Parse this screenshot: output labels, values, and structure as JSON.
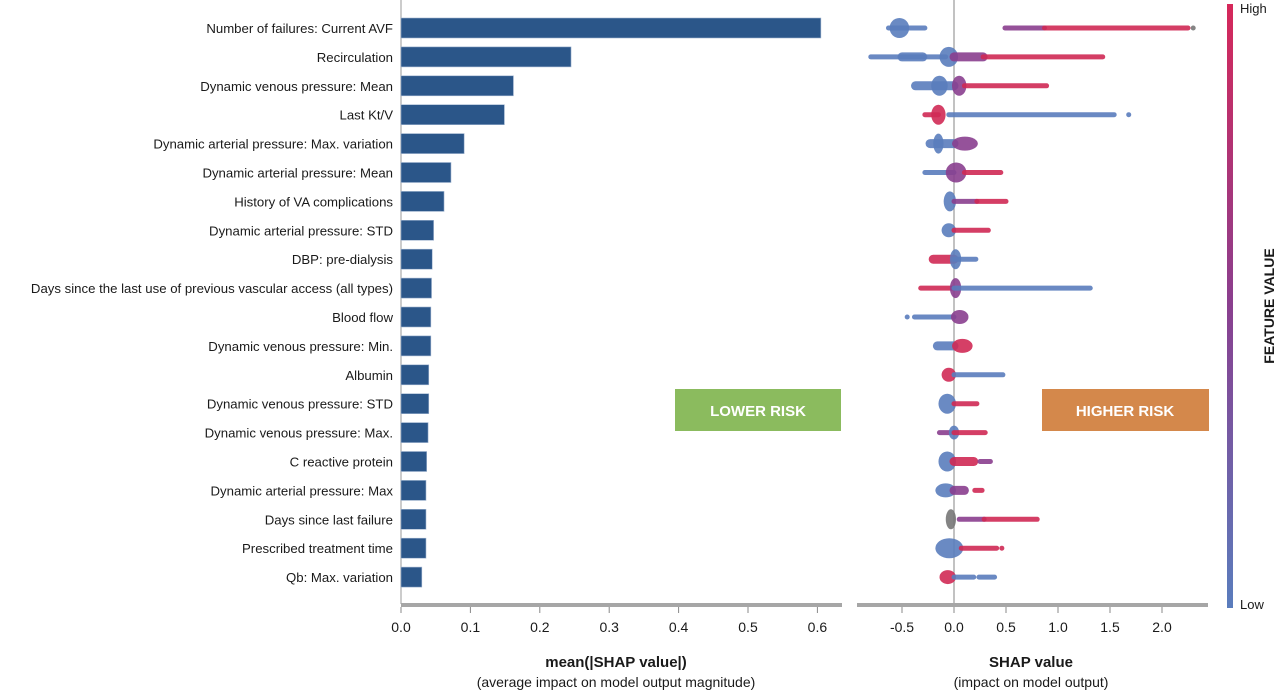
{
  "chart_data": [
    {
      "type": "bar",
      "orientation": "horizontal",
      "categories": [
        "Number of failures: Current AVF",
        "Recirculation",
        "Dynamic venous pressure: Mean",
        "Last Kt/V",
        "Dynamic arterial pressure: Max. variation",
        "Dynamic arterial pressure: Mean",
        "History of VA complications",
        "Dynamic arterial pressure: STD",
        "DBP: pre-dialysis",
        "Days since the last use of previous vascular access (all types)",
        "Blood flow",
        "Dynamic venous pressure: Min.",
        "Albumin",
        "Dynamic venous pressure: STD",
        "Dynamic venous pressure: Max.",
        "C reactive protein",
        "Dynamic arterial pressure: Max",
        "Days since last failure",
        "Prescribed treatment time",
        "Qb: Max. variation"
      ],
      "values": [
        0.605,
        0.245,
        0.162,
        0.149,
        0.091,
        0.072,
        0.062,
        0.047,
        0.045,
        0.044,
        0.043,
        0.043,
        0.04,
        0.04,
        0.039,
        0.037,
        0.036,
        0.036,
        0.036,
        0.03
      ],
      "xlim": [
        0.0,
        0.635
      ],
      "xticks": [
        "0.0",
        "0.1",
        "0.2",
        "0.3",
        "0.4",
        "0.5",
        "0.6"
      ],
      "xlabel": "mean(|SHAP value|)",
      "xlabel_sub": "(average impact on model output magnitude)",
      "bar_color": "#2b5689",
      "annotation": "LOWER RISK",
      "annotation_color": "#8bbb5e"
    },
    {
      "type": "scatter",
      "subtype": "beeswarm",
      "xlim": [
        -0.9,
        2.45
      ],
      "xticks": [
        "-0.5",
        "0.0",
        "0.5",
        "1.0",
        "1.5",
        "2.0"
      ],
      "xlabel": "SHAP value",
      "xlabel_sub": "(impact on model output)",
      "annotation": "HIGHER RISK",
      "annotation_color": "#d4884b",
      "colors": {
        "low": "#5a7dbd",
        "mid": "#8a3f8f",
        "high": "#d02a55",
        "na": "#777777"
      },
      "colorbar": {
        "title": "FEATURE VALUE",
        "high_label": "High",
        "low_label": "Low"
      },
      "features": [
        [
          [
            -0.63,
            -0.28,
            "low",
            1
          ],
          [
            -0.6,
            -0.45,
            "low",
            4
          ],
          [
            0.49,
            0.87,
            "mid",
            1
          ],
          [
            0.87,
            2.25,
            "high",
            1
          ],
          [
            2.3,
            2.3,
            "na",
            1
          ]
        ],
        [
          [
            -0.8,
            -0.08,
            "low",
            1
          ],
          [
            -0.5,
            -0.3,
            "low",
            2
          ],
          [
            -0.12,
            0.02,
            "low",
            4
          ],
          [
            0.0,
            0.28,
            "mid",
            2
          ],
          [
            0.28,
            1.43,
            "high",
            1
          ]
        ],
        [
          [
            -0.37,
            0.0,
            "low",
            2
          ],
          [
            -0.2,
            -0.08,
            "low",
            4
          ],
          [
            0.0,
            0.1,
            "mid",
            4
          ],
          [
            0.1,
            0.89,
            "high",
            1
          ]
        ],
        [
          [
            -0.28,
            -0.15,
            "high",
            1
          ],
          [
            -0.2,
            -0.1,
            "high",
            4
          ],
          [
            -0.05,
            1.54,
            "low",
            1
          ],
          [
            1.68,
            1.68,
            "low",
            1
          ]
        ],
        [
          [
            -0.23,
            0.0,
            "low",
            2
          ],
          [
            -0.18,
            -0.12,
            "low",
            4
          ],
          [
            0.0,
            0.21,
            "mid",
            3
          ]
        ],
        [
          [
            -0.28,
            0.0,
            "low",
            1
          ],
          [
            -0.06,
            0.1,
            "mid",
            4
          ],
          [
            0.1,
            0.45,
            "high",
            1
          ]
        ],
        [
          [
            -0.08,
            0.0,
            "low",
            4
          ],
          [
            0.0,
            0.22,
            "mid",
            1
          ],
          [
            0.22,
            0.5,
            "high",
            1
          ]
        ],
        [
          [
            -0.1,
            0.0,
            "low",
            3
          ],
          [
            0.0,
            0.33,
            "high",
            1
          ]
        ],
        [
          [
            -0.2,
            0.0,
            "high",
            2
          ],
          [
            -0.02,
            0.05,
            "low",
            4
          ],
          [
            0.0,
            0.21,
            "low",
            1
          ]
        ],
        [
          [
            -0.32,
            0.0,
            "high",
            1
          ],
          [
            -0.02,
            0.05,
            "mid",
            4
          ],
          [
            0.0,
            1.31,
            "low",
            1
          ]
        ],
        [
          [
            -0.45,
            -0.45,
            "low",
            1
          ],
          [
            -0.38,
            0.0,
            "low",
            1
          ],
          [
            -0.01,
            0.12,
            "mid",
            3
          ]
        ],
        [
          [
            -0.16,
            0.0,
            "low",
            2
          ],
          [
            0.0,
            0.16,
            "high",
            3
          ]
        ],
        [
          [
            -0.1,
            0.0,
            "high",
            3
          ],
          [
            0.0,
            0.47,
            "low",
            1
          ]
        ],
        [
          [
            -0.13,
            0.0,
            "low",
            4
          ],
          [
            0.0,
            0.22,
            "high",
            1
          ]
        ],
        [
          [
            -0.14,
            0.0,
            "mid",
            1
          ],
          [
            -0.03,
            0.03,
            "low",
            3
          ],
          [
            0.0,
            0.3,
            "high",
            1
          ]
        ],
        [
          [
            -0.13,
            0.0,
            "low",
            4
          ],
          [
            0.0,
            0.19,
            "high",
            2
          ],
          [
            0.25,
            0.35,
            "mid",
            1
          ]
        ],
        [
          [
            -0.16,
            0.0,
            "low",
            3
          ],
          [
            0.0,
            0.1,
            "mid",
            2
          ],
          [
            0.2,
            0.27,
            "high",
            1
          ]
        ],
        [
          [
            -0.06,
            0.0,
            "na",
            4
          ],
          [
            0.05,
            0.29,
            "mid",
            1
          ],
          [
            0.29,
            0.8,
            "high",
            1
          ]
        ],
        [
          [
            -0.16,
            0.07,
            "low",
            4
          ],
          [
            0.07,
            0.41,
            "high",
            1
          ],
          [
            0.46,
            0.46,
            "high",
            1
          ]
        ],
        [
          [
            -0.12,
            0.0,
            "high",
            3
          ],
          [
            0.0,
            0.19,
            "low",
            1
          ],
          [
            0.24,
            0.39,
            "low",
            1
          ]
        ]
      ]
    }
  ]
}
